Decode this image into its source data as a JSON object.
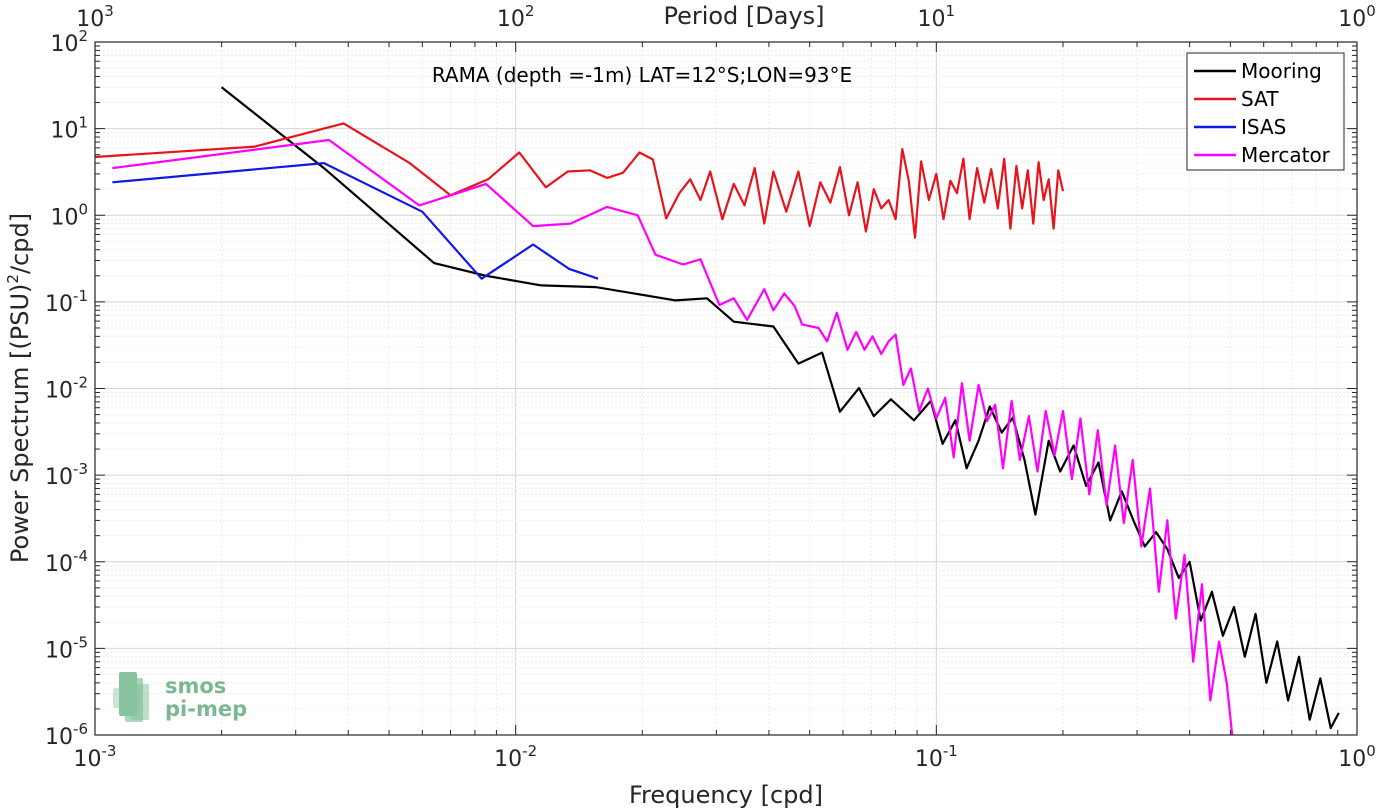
{
  "chart_data": {
    "type": "line",
    "annotation": "RAMA (depth =-1m) LAT=12°S;LON=93°E",
    "xlabel": "Frequency [cpd]",
    "ylabel_main": "Power Spectrum [(PSU)",
    "ylabel_sup": "2",
    "ylabel_tail": "/cpd]",
    "top_xlabel": "Period [Days]",
    "xscale": "log",
    "yscale": "log",
    "xlim": [
      0.001,
      1
    ],
    "ylim": [
      1e-06,
      100
    ],
    "grid": true,
    "legend_position": "top-right",
    "x_ticks": [
      {
        "value": 0.001,
        "base": "10",
        "exp": "-3"
      },
      {
        "value": 0.01,
        "base": "10",
        "exp": "-2"
      },
      {
        "value": 0.1,
        "base": "10",
        "exp": "-1"
      },
      {
        "value": 1,
        "base": "10",
        "exp": "0"
      }
    ],
    "top_ticks": [
      {
        "value": 0.001,
        "base": "10",
        "exp": "3"
      },
      {
        "value": 0.01,
        "base": "10",
        "exp": "2"
      },
      {
        "value": 0.1,
        "base": "10",
        "exp": "1"
      },
      {
        "value": 1,
        "base": "10",
        "exp": "0"
      }
    ],
    "y_ticks": [
      {
        "value": 100,
        "base": "10",
        "exp": "2"
      },
      {
        "value": 10,
        "base": "10",
        "exp": "1"
      },
      {
        "value": 1,
        "base": "10",
        "exp": "0"
      },
      {
        "value": 0.1,
        "base": "10",
        "exp": "-1"
      },
      {
        "value": 0.01,
        "base": "10",
        "exp": "-2"
      },
      {
        "value": 0.001,
        "base": "10",
        "exp": "-3"
      },
      {
        "value": 0.0001,
        "base": "10",
        "exp": "-4"
      },
      {
        "value": 1e-05,
        "base": "10",
        "exp": "-5"
      },
      {
        "value": 1e-06,
        "base": "10",
        "exp": "-6"
      }
    ],
    "series": [
      {
        "name": "Mooring",
        "color": "#000000",
        "x": [
          0.002,
          0.0035,
          0.0064,
          0.0085,
          0.0115,
          0.0155,
          0.024,
          0.0285,
          0.033,
          0.041,
          0.047,
          0.0535,
          0.059,
          0.0655,
          0.071,
          0.078,
          0.0885,
          0.097,
          0.1035,
          0.111,
          0.118,
          0.126,
          0.134,
          0.143,
          0.152,
          0.162,
          0.172,
          0.185,
          0.197,
          0.212,
          0.227,
          0.243,
          0.259,
          0.276,
          0.294,
          0.313,
          0.333,
          0.354,
          0.377,
          0.4,
          0.425,
          0.452,
          0.48,
          0.51,
          0.541,
          0.574,
          0.609,
          0.646,
          0.686,
          0.728,
          0.772,
          0.818,
          0.866,
          0.905
        ],
        "y": [
          30,
          3.5,
          0.28,
          0.2,
          0.155,
          0.148,
          0.104,
          0.11,
          0.059,
          0.052,
          0.0194,
          0.026,
          0.0054,
          0.0101,
          0.0048,
          0.0075,
          0.0043,
          0.0072,
          0.0023,
          0.0043,
          0.0012,
          0.0025,
          0.0062,
          0.0031,
          0.0046,
          0.0015,
          0.00035,
          0.0025,
          0.0011,
          0.0022,
          0.00075,
          0.0014,
          0.0003,
          0.00065,
          0.0003,
          0.00015,
          0.00022,
          0.00014,
          6.5e-05,
          0.0001,
          2.1e-05,
          4.5e-05,
          1.4e-05,
          3e-05,
          8e-06,
          2.5e-05,
          4e-06,
          1.2e-05,
          2.5e-06,
          8e-06,
          1.5e-06,
          4.5e-06,
          1.2e-06,
          1.8e-06
        ]
      },
      {
        "name": "SAT",
        "color": "#e8141b",
        "x": [
          0.001,
          0.0024,
          0.0039,
          0.0056,
          0.007,
          0.0086,
          0.0102,
          0.0118,
          0.0133,
          0.015,
          0.0165,
          0.018,
          0.0197,
          0.0212,
          0.0228,
          0.0245,
          0.026,
          0.0275,
          0.029,
          0.031,
          0.033,
          0.035,
          0.037,
          0.039,
          0.041,
          0.044,
          0.047,
          0.05,
          0.053,
          0.056,
          0.059,
          0.062,
          0.065,
          0.068,
          0.071,
          0.074,
          0.077,
          0.08,
          0.083,
          0.086,
          0.089,
          0.092,
          0.096,
          0.1,
          0.104,
          0.108,
          0.112,
          0.116,
          0.12,
          0.125,
          0.13,
          0.135,
          0.14,
          0.145,
          0.15,
          0.155,
          0.16,
          0.165,
          0.17,
          0.175,
          0.18,
          0.185,
          0.19,
          0.195,
          0.2
        ],
        "y": [
          4.7,
          6.2,
          11.5,
          4,
          1.7,
          2.6,
          5.3,
          2.1,
          3.2,
          3.3,
          2.7,
          3.1,
          5.3,
          4.4,
          0.92,
          1.8,
          2.6,
          1.5,
          3.2,
          0.9,
          2.3,
          1.3,
          3.5,
          0.8,
          3.2,
          1.1,
          3.2,
          0.75,
          2.4,
          1.4,
          3.6,
          1.0,
          2.4,
          0.65,
          2.0,
          1.2,
          1.5,
          0.9,
          5.8,
          2.5,
          0.55,
          4.2,
          1.5,
          3.0,
          0.9,
          2.5,
          1.8,
          4.5,
          0.9,
          3.5,
          1.4,
          3.4,
          1.2,
          4.5,
          0.7,
          3.7,
          1.2,
          3.3,
          0.8,
          4.1,
          1.5,
          2.6,
          0.7,
          3.3,
          1.9
        ]
      },
      {
        "name": "ISAS",
        "color": "#0f19e6",
        "x": [
          0.0011,
          0.0035,
          0.006,
          0.0083,
          0.011,
          0.0134,
          0.0157
        ],
        "y": [
          2.4,
          4.0,
          1.1,
          0.185,
          0.46,
          0.24,
          0.185
        ]
      },
      {
        "name": "Mercator",
        "color": "#ff00ff",
        "x": [
          0.0011,
          0.0036,
          0.0059,
          0.0085,
          0.011,
          0.0135,
          0.0165,
          0.0195,
          0.0215,
          0.025,
          0.0275,
          0.0305,
          0.033,
          0.0355,
          0.039,
          0.041,
          0.0435,
          0.046,
          0.048,
          0.0525,
          0.055,
          0.058,
          0.0615,
          0.0645,
          0.0675,
          0.0705,
          0.074,
          0.077,
          0.08,
          0.0835,
          0.087,
          0.091,
          0.0955,
          0.1,
          0.105,
          0.11,
          0.115,
          0.12,
          0.126,
          0.132,
          0.138,
          0.144,
          0.151,
          0.158,
          0.166,
          0.174,
          0.182,
          0.191,
          0.2,
          0.21,
          0.22,
          0.231,
          0.242,
          0.254,
          0.266,
          0.279,
          0.293,
          0.307,
          0.322,
          0.338,
          0.354,
          0.371,
          0.389,
          0.408,
          0.428,
          0.448,
          0.47,
          0.49,
          0.505
        ],
        "y": [
          3.5,
          7.4,
          1.3,
          2.3,
          0.75,
          0.8,
          1.25,
          1.0,
          0.35,
          0.27,
          0.31,
          0.092,
          0.11,
          0.062,
          0.14,
          0.08,
          0.125,
          0.09,
          0.055,
          0.05,
          0.035,
          0.075,
          0.028,
          0.045,
          0.028,
          0.04,
          0.025,
          0.035,
          0.042,
          0.011,
          0.017,
          0.0055,
          0.01,
          0.0045,
          0.0078,
          0.0016,
          0.0115,
          0.0025,
          0.011,
          0.0042,
          0.0065,
          0.0012,
          0.0072,
          0.0015,
          0.0048,
          0.0011,
          0.0055,
          0.0017,
          0.0055,
          0.0009,
          0.0045,
          0.0006,
          0.0033,
          0.00045,
          0.0022,
          0.00028,
          0.0015,
          0.00015,
          0.0007,
          4.5e-05,
          0.0003,
          2.2e-05,
          0.00012,
          7e-06,
          5.5e-05,
          2.5e-06,
          1.2e-05,
          4e-06,
          1e-06
        ]
      }
    ]
  },
  "logo": {
    "line1": "smos",
    "line2": "pi-mep"
  }
}
